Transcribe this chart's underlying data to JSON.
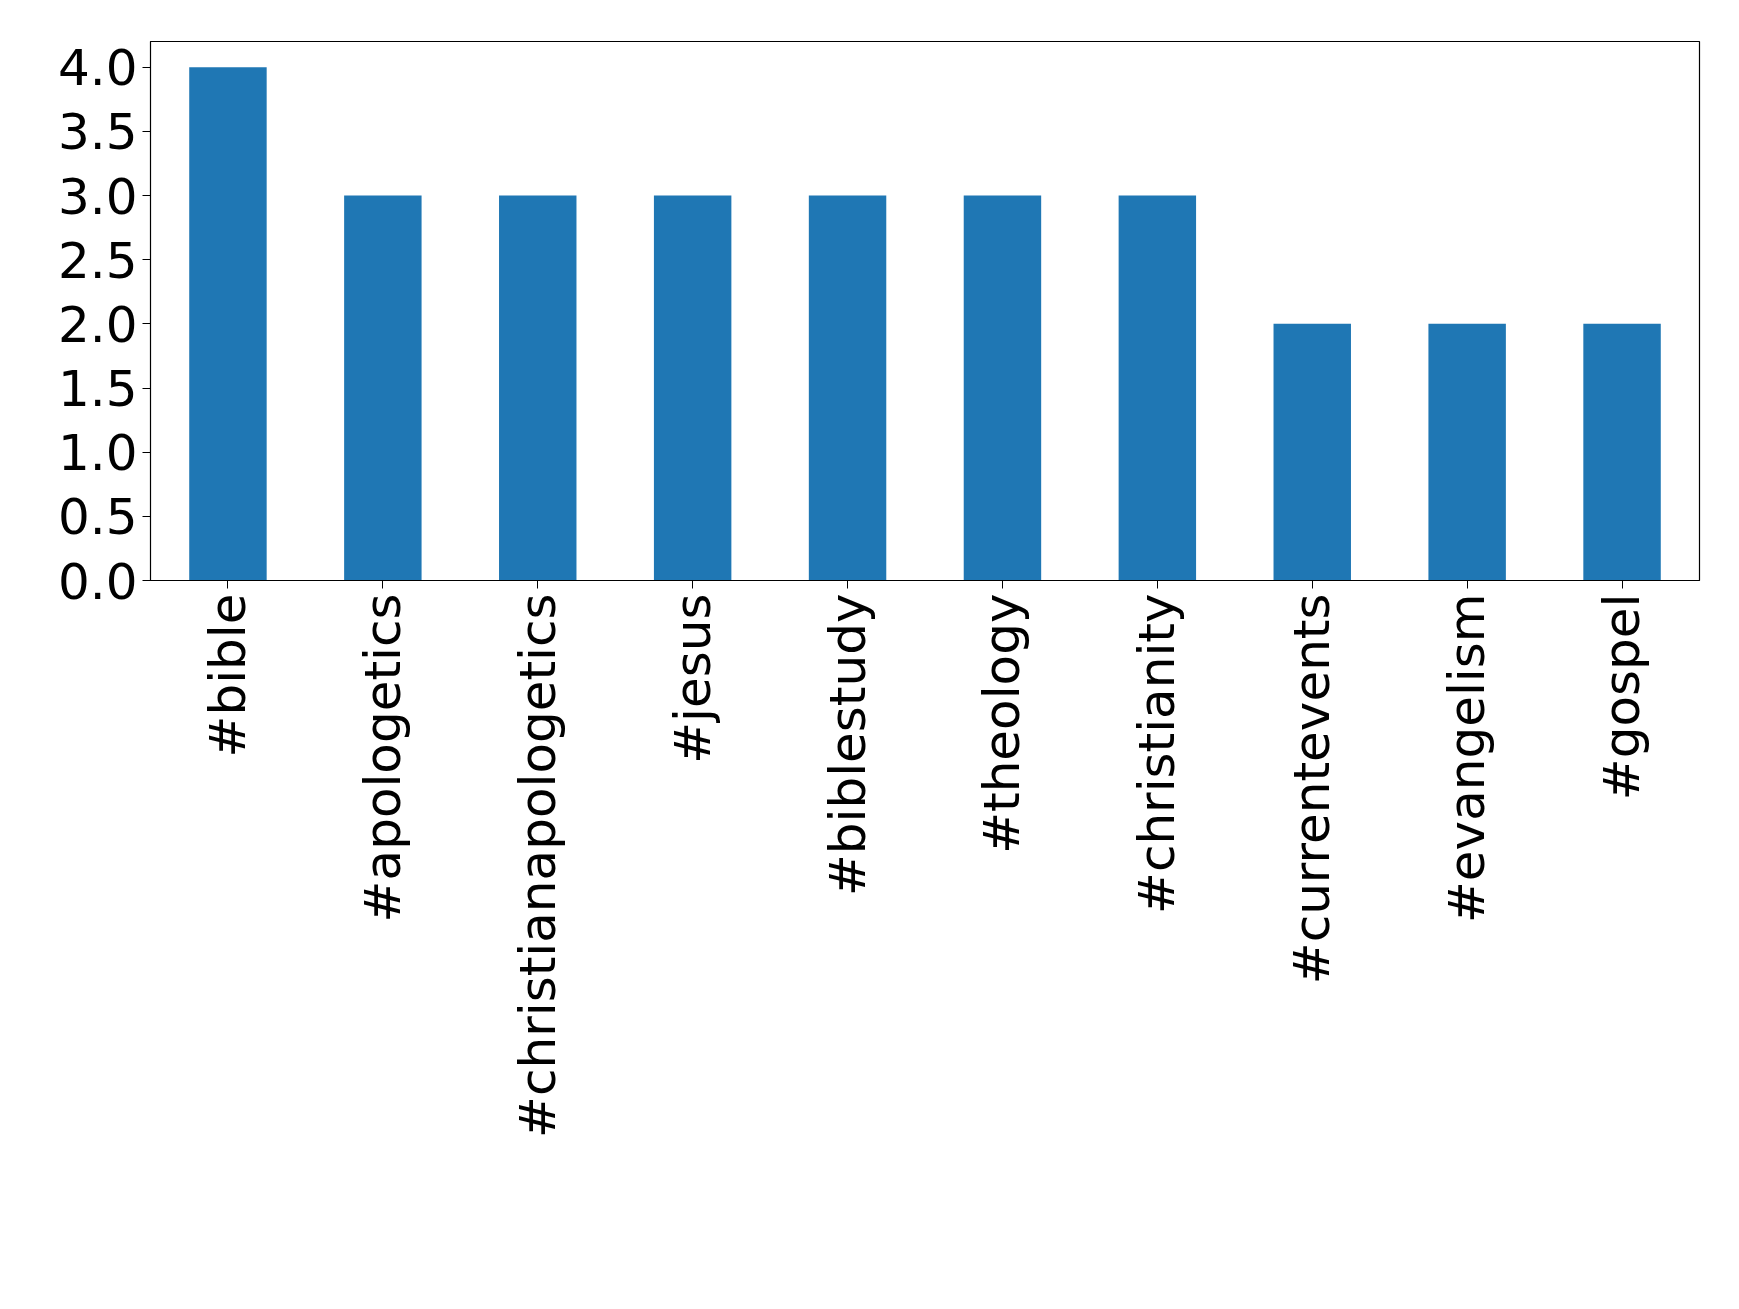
{
  "chart_data": {
    "type": "bar",
    "categories": [
      "#bible",
      "#apologetics",
      "#christianapologetics",
      "#jesus",
      "#biblestudy",
      "#theology",
      "#christianity",
      "#currentevents",
      "#evangelism",
      "#gospel"
    ],
    "values": [
      4,
      3,
      3,
      3,
      3,
      3,
      3,
      2,
      2,
      2
    ],
    "color": "#1f77b4",
    "ylim": [
      0,
      4.2
    ],
    "yticks": [
      {
        "value": 0,
        "label": "0.0"
      },
      {
        "value": 0.5,
        "label": "0.5"
      },
      {
        "value": 1,
        "label": "1.0"
      },
      {
        "value": 1.5,
        "label": "1.5"
      },
      {
        "value": 2,
        "label": "2.0"
      },
      {
        "value": 2.5,
        "label": "2.5"
      },
      {
        "value": 3,
        "label": "3.0"
      },
      {
        "value": 3.5,
        "label": "3.5"
      },
      {
        "value": 4,
        "label": "4.0"
      }
    ],
    "grid": false
  }
}
